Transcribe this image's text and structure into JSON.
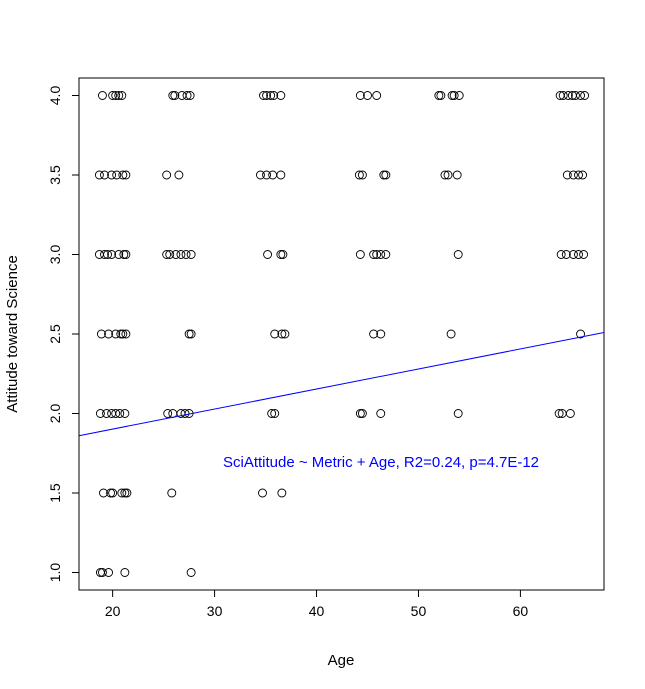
{
  "chart_data": {
    "type": "scatter",
    "title": "",
    "xlabel": "Age",
    "ylabel": "Attitude toward Science",
    "xlim": [
      16.7,
      68.2
    ],
    "ylim": [
      0.89,
      4.11
    ],
    "xticks": [
      20,
      30,
      40,
      50,
      60
    ],
    "yticks": [
      1.0,
      1.5,
      2.0,
      2.5,
      3.0,
      3.5,
      4.0
    ],
    "xtick_labels": [
      "20",
      "30",
      "40",
      "50",
      "60"
    ],
    "ytick_labels": [
      "1.0",
      "1.5",
      "2.0",
      "2.5",
      "3.0",
      "3.5",
      "4.0"
    ],
    "grid": false,
    "annotation": "SciAttitude ~ Metric + Age, R2=0.24, p=4.7E-12",
    "annotation_color": "#0000ff",
    "fit_line": {
      "intercept": 1.65,
      "slope": 0.0126,
      "color": "#0000ff"
    },
    "point_color": "#000000",
    "series": [
      {
        "points": [
          [
            19.0,
            4.0
          ],
          [
            20.0,
            4.0
          ],
          [
            20.3,
            4.0
          ],
          [
            20.6,
            4.0
          ],
          [
            20.9,
            4.0
          ],
          [
            25.9,
            4.0
          ],
          [
            26.1,
            4.0
          ],
          [
            26.8,
            4.0
          ],
          [
            27.3,
            4.0
          ],
          [
            27.6,
            4.0
          ],
          [
            34.8,
            4.0
          ],
          [
            35.1,
            4.0
          ],
          [
            35.5,
            4.0
          ],
          [
            35.8,
            4.0
          ],
          [
            36.5,
            4.0
          ],
          [
            44.3,
            4.0
          ],
          [
            45.0,
            4.0
          ],
          [
            45.9,
            4.0
          ],
          [
            52.0,
            4.0
          ],
          [
            52.2,
            4.0
          ],
          [
            53.3,
            4.0
          ],
          [
            53.5,
            4.0
          ],
          [
            54.0,
            4.0
          ],
          [
            63.9,
            4.0
          ],
          [
            64.2,
            4.0
          ],
          [
            64.7,
            4.0
          ],
          [
            65.1,
            4.0
          ],
          [
            65.4,
            4.0
          ],
          [
            65.9,
            4.0
          ],
          [
            66.3,
            4.0
          ],
          [
            18.7,
            3.5
          ],
          [
            19.2,
            3.5
          ],
          [
            19.9,
            3.5
          ],
          [
            20.4,
            3.5
          ],
          [
            21.0,
            3.5
          ],
          [
            21.3,
            3.5
          ],
          [
            25.3,
            3.5
          ],
          [
            26.5,
            3.5
          ],
          [
            34.5,
            3.5
          ],
          [
            35.1,
            3.5
          ],
          [
            35.7,
            3.5
          ],
          [
            36.5,
            3.5
          ],
          [
            44.2,
            3.5
          ],
          [
            44.5,
            3.5
          ],
          [
            46.6,
            3.5
          ],
          [
            46.8,
            3.5
          ],
          [
            52.6,
            3.5
          ],
          [
            52.9,
            3.5
          ],
          [
            53.8,
            3.5
          ],
          [
            64.6,
            3.5
          ],
          [
            65.2,
            3.5
          ],
          [
            65.7,
            3.5
          ],
          [
            66.1,
            3.5
          ],
          [
            18.7,
            3.0
          ],
          [
            19.2,
            3.0
          ],
          [
            19.5,
            3.0
          ],
          [
            19.9,
            3.0
          ],
          [
            20.6,
            3.0
          ],
          [
            21.1,
            3.0
          ],
          [
            21.3,
            3.0
          ],
          [
            25.3,
            3.0
          ],
          [
            25.6,
            3.0
          ],
          [
            26.2,
            3.0
          ],
          [
            26.7,
            3.0
          ],
          [
            27.2,
            3.0
          ],
          [
            27.7,
            3.0
          ],
          [
            35.2,
            3.0
          ],
          [
            36.5,
            3.0
          ],
          [
            36.7,
            3.0
          ],
          [
            44.3,
            3.0
          ],
          [
            45.6,
            3.0
          ],
          [
            45.9,
            3.0
          ],
          [
            46.3,
            3.0
          ],
          [
            46.8,
            3.0
          ],
          [
            53.9,
            3.0
          ],
          [
            64.0,
            3.0
          ],
          [
            64.5,
            3.0
          ],
          [
            65.2,
            3.0
          ],
          [
            65.7,
            3.0
          ],
          [
            66.2,
            3.0
          ],
          [
            18.9,
            2.5
          ],
          [
            19.6,
            2.5
          ],
          [
            20.3,
            2.5
          ],
          [
            20.8,
            2.5
          ],
          [
            21.0,
            2.5
          ],
          [
            21.3,
            2.5
          ],
          [
            27.5,
            2.5
          ],
          [
            27.7,
            2.5
          ],
          [
            35.9,
            2.5
          ],
          [
            36.6,
            2.5
          ],
          [
            36.9,
            2.5
          ],
          [
            45.6,
            2.5
          ],
          [
            46.3,
            2.5
          ],
          [
            53.2,
            2.5
          ],
          [
            65.9,
            2.5
          ],
          [
            18.8,
            2.0
          ],
          [
            19.4,
            2.0
          ],
          [
            19.9,
            2.0
          ],
          [
            20.3,
            2.0
          ],
          [
            20.7,
            2.0
          ],
          [
            21.2,
            2.0
          ],
          [
            25.4,
            2.0
          ],
          [
            25.9,
            2.0
          ],
          [
            26.7,
            2.0
          ],
          [
            27.1,
            2.0
          ],
          [
            27.5,
            2.0
          ],
          [
            35.6,
            2.0
          ],
          [
            35.9,
            2.0
          ],
          [
            44.3,
            2.0
          ],
          [
            44.5,
            2.0
          ],
          [
            46.3,
            2.0
          ],
          [
            53.9,
            2.0
          ],
          [
            63.8,
            2.0
          ],
          [
            64.1,
            2.0
          ],
          [
            64.9,
            2.0
          ],
          [
            19.1,
            1.5
          ],
          [
            19.8,
            1.5
          ],
          [
            20.0,
            1.5
          ],
          [
            20.9,
            1.5
          ],
          [
            21.2,
            1.5
          ],
          [
            21.4,
            1.5
          ],
          [
            25.8,
            1.5
          ],
          [
            34.7,
            1.5
          ],
          [
            36.6,
            1.5
          ],
          [
            18.8,
            1.0
          ],
          [
            19.0,
            1.0
          ],
          [
            19.6,
            1.0
          ],
          [
            21.2,
            1.0
          ],
          [
            27.7,
            1.0
          ]
        ]
      }
    ]
  }
}
